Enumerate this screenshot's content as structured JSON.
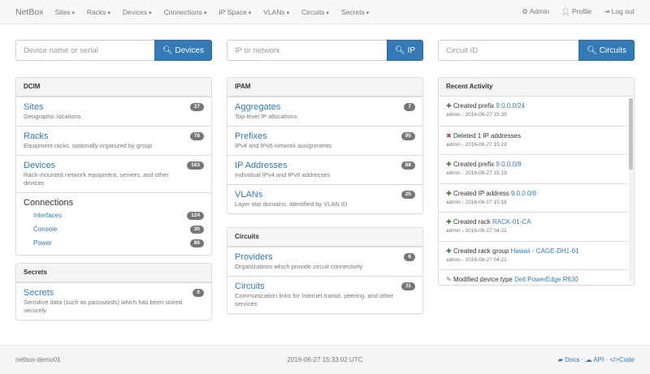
{
  "nav": {
    "brand": "NetBox",
    "menus": [
      "Sites",
      "Racks",
      "Devices",
      "Connections",
      "IP Space",
      "VLANs",
      "Circuits",
      "Secrets"
    ],
    "admin": "Admin",
    "profile": "Profile",
    "logout": "Log out"
  },
  "search": [
    {
      "placeholder": "Device name or serial",
      "button": "Devices"
    },
    {
      "placeholder": "IP or network",
      "button": "IP"
    },
    {
      "placeholder": "Circuit ID",
      "button": "Circuits"
    }
  ],
  "dcim": {
    "title": "DCIM",
    "items": [
      {
        "label": "Sites",
        "desc": "Geographic locations",
        "count": "27"
      },
      {
        "label": "Racks",
        "desc": "Equipment racks, optionally organized by group",
        "count": "78"
      },
      {
        "label": "Devices",
        "desc": "Rack-mounted network equipment, servers, and other devices",
        "count": "163"
      }
    ],
    "connections": {
      "label": "Connections",
      "items": [
        {
          "label": "Interfaces",
          "count": "124"
        },
        {
          "label": "Console",
          "count": "30"
        },
        {
          "label": "Power",
          "count": "86"
        }
      ]
    }
  },
  "secrets": {
    "title": "Secrets",
    "items": [
      {
        "label": "Secrets",
        "desc": "Sensitive data (such as passwords) which has been stored securely",
        "count": "0"
      }
    ]
  },
  "ipam": {
    "title": "IPAM",
    "items": [
      {
        "label": "Aggregates",
        "desc": "Top-level IP allocations",
        "count": "7"
      },
      {
        "label": "Prefixes",
        "desc": "IPv4 and IPv6 network assignments",
        "count": "95"
      },
      {
        "label": "IP Addresses",
        "desc": "Individual IPv4 and IPv6 addresses",
        "count": "88"
      },
      {
        "label": "VLANs",
        "desc": "Layer two domains, identified by VLAN ID",
        "count": "25"
      }
    ]
  },
  "circuits": {
    "title": "Circuits",
    "items": [
      {
        "label": "Providers",
        "desc": "Organizations which provide circuit connectivity",
        "count": "6"
      },
      {
        "label": "Circuits",
        "desc": "Communication links for Internet transit, peering, and other services",
        "count": "11"
      }
    ]
  },
  "activity": {
    "title": "Recent Activity",
    "items": [
      {
        "icon": "plus",
        "action": "Created prefix",
        "link": "9.0.0.0/24",
        "meta": "admin - 2016-06-27 15:20"
      },
      {
        "icon": "x",
        "action": "Deleted 1 IP addresses",
        "link": "",
        "meta": "admin - 2016-06-27 15:19"
      },
      {
        "icon": "plus",
        "action": "Created prefix",
        "link": "9.0.0.0/8",
        "meta": "admin - 2016-06-27 15:19"
      },
      {
        "icon": "plus",
        "action": "Created IP address",
        "link": "9.0.0.0/8",
        "meta": "admin - 2016-06-27 15:18"
      },
      {
        "icon": "plus",
        "action": "Created rack",
        "link": "RACK-01-CA",
        "meta": "admin - 2016-06-27 04:21"
      },
      {
        "icon": "plus",
        "action": "Created rack group",
        "link": "Hawaii - CAGE-DH1-01",
        "meta": "admin - 2016-06-27 04:21"
      },
      {
        "icon": "pencil",
        "action": "Modified device type",
        "link": "Dell PowerEdge R630",
        "meta": ""
      }
    ]
  },
  "footer": {
    "host": "netbox-demo01",
    "time": "2016-06-27 15:33:02 UTC",
    "docs": "Docs",
    "api": "API",
    "code": "Code"
  },
  "colors": {
    "primary": "#337ab7",
    "created": "#3c763d",
    "deleted": "#a94442"
  }
}
